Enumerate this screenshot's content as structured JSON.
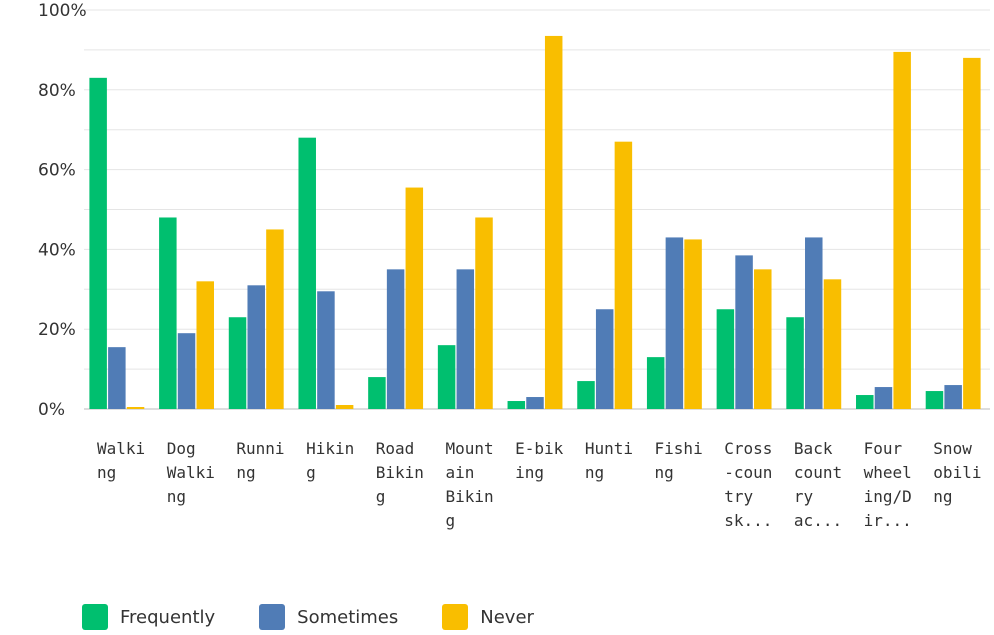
{
  "chart_data": {
    "type": "bar",
    "title": "",
    "xlabel": "",
    "ylabel": "",
    "ylim": [
      0,
      100
    ],
    "yticks": [
      "0%",
      "20%",
      "40%",
      "60%",
      "80%",
      "100%"
    ],
    "grid": true,
    "legend_position": "bottom-left",
    "categories": [
      "Walking",
      "Dog Walking",
      "Running",
      "Hiking",
      "Road Biking",
      "Mountain Biking",
      "E-biking",
      "Hunting",
      "Fishing",
      "Cross-country sk...",
      "Backcountry ac...",
      "Four wheeling/Dir...",
      "Snowobiling"
    ],
    "category_label_lines": [
      [
        "Walki",
        "ng"
      ],
      [
        "Dog",
        "Walki",
        "ng"
      ],
      [
        "Runni",
        "ng"
      ],
      [
        "Hikin",
        "g"
      ],
      [
        "Road",
        "Bikin",
        "g"
      ],
      [
        "Mount",
        "ain",
        "Bikin",
        "g"
      ],
      [
        "E-bik",
        "ing"
      ],
      [
        "Hunti",
        "ng"
      ],
      [
        "Fishi",
        "ng"
      ],
      [
        "Cross",
        "-coun",
        "try",
        "sk..."
      ],
      [
        "Back",
        "count",
        "ry",
        "ac..."
      ],
      [
        "Four",
        "wheel",
        "ing/D",
        "ir..."
      ],
      [
        "Snow",
        "obili",
        "ng"
      ]
    ],
    "series": [
      {
        "name": "Frequently",
        "color": "#00BF6F",
        "values": [
          83,
          48,
          23,
          68,
          8,
          16,
          2,
          7,
          13,
          25,
          23,
          3.5,
          4.5
        ]
      },
      {
        "name": "Sometimes",
        "color": "#507CB6",
        "values": [
          15.5,
          19,
          31,
          29.5,
          35,
          35,
          3,
          25,
          43,
          38.5,
          43,
          5.5,
          6
        ]
      },
      {
        "name": "Never",
        "color": "#F9BE00",
        "values": [
          0.5,
          32,
          45,
          1,
          55.5,
          48,
          93.5,
          67,
          42.5,
          35,
          32.5,
          89.5,
          88
        ]
      }
    ]
  }
}
